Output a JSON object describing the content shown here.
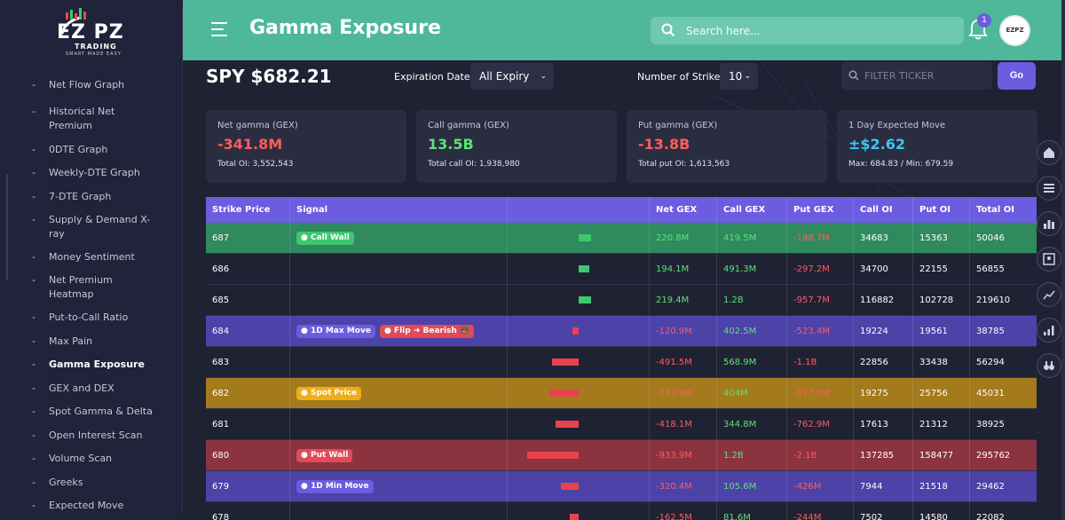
{
  "brand": {
    "logo_text": "EZ PZ",
    "sub1": "TRADING",
    "sub2": "SMART MADE EASY"
  },
  "sidebar": {
    "items": [
      {
        "label": "Net Flow Graph",
        "active": false
      },
      {
        "label": "Historical Net Premium",
        "active": false
      },
      {
        "label": "0DTE Graph",
        "active": false
      },
      {
        "label": "Weekly-DTE Graph",
        "active": false
      },
      {
        "label": "7-DTE Graph",
        "active": false
      },
      {
        "label": "Supply & Demand X-ray",
        "active": false
      },
      {
        "label": "Money Sentiment",
        "active": false
      },
      {
        "label": "Net Premium Heatmap",
        "active": false
      },
      {
        "label": "Put-to-Call Ratio",
        "active": false
      },
      {
        "label": "Max Pain",
        "active": false
      },
      {
        "label": "Gamma Exposure",
        "active": true
      },
      {
        "label": "GEX and DEX",
        "active": false
      },
      {
        "label": "Spot Gamma & Delta",
        "active": false
      },
      {
        "label": "Open Interest Scan",
        "active": false
      },
      {
        "label": "Volume Scan",
        "active": false
      },
      {
        "label": "Greeks",
        "active": false
      },
      {
        "label": "Expected Move",
        "active": false
      }
    ]
  },
  "header": {
    "title": "Gamma Exposure",
    "search_placeholder": "Search here...",
    "notification_count": "1",
    "avatar_text": "EZPZ"
  },
  "controls": {
    "ticker_price": "SPY $682.21",
    "expiration_label": "Expiration Dates:",
    "expiration_value": "All Expiry",
    "strikes_label": "Number of Strikes:",
    "strikes_value": "10",
    "filter_placeholder": "FILTER TICKER",
    "go_label": "Go"
  },
  "cards": [
    {
      "label": "Net gamma (GEX)",
      "value": "-341.8M",
      "sub": "Total OI: 3,552,543",
      "color": "#ff5d5d"
    },
    {
      "label": "Call gamma (GEX)",
      "value": "13.5B",
      "sub": "Total call OI: 1,938,980",
      "color": "#5fe07a"
    },
    {
      "label": "Put gamma (GEX)",
      "value": "-13.8B",
      "sub": "Total put OI: 1,613,563",
      "color": "#ff5d5d"
    },
    {
      "label": "1 Day Expected Move",
      "value": "±$2.62",
      "sub": "Max: 684.83 / Min: 679.59",
      "color": "#3fc3f0"
    }
  ],
  "table": {
    "headers": [
      "Strike Price",
      "Signal",
      "",
      "Net GEX",
      "Call GEX",
      "Put GEX",
      "Call OI",
      "Put OI",
      "Total OI"
    ],
    "rows": [
      {
        "strike": "687",
        "bg": "#2f8a5e",
        "badges": [
          {
            "text": "● Call Wall",
            "color": "#3ec76f"
          }
        ],
        "net_gex_value": 220.8,
        "net": "220.8M",
        "call": "419.5M",
        "put": "-198.7M",
        "call_oi": "34683",
        "put_oi": "15363",
        "total_oi": "50046"
      },
      {
        "strike": "686",
        "bg": "#1f2233",
        "badges": [],
        "net_gex_value": 194.1,
        "net": "194.1M",
        "call": "491.3M",
        "put": "-297.2M",
        "call_oi": "34700",
        "put_oi": "22155",
        "total_oi": "56855"
      },
      {
        "strike": "685",
        "bg": "#1f2233",
        "badges": [],
        "net_gex_value": 219.4,
        "net": "219.4M",
        "call": "1.2B",
        "put": "-957.7M",
        "call_oi": "116882",
        "put_oi": "102728",
        "total_oi": "219610"
      },
      {
        "strike": "684",
        "bg": "#4c42a8",
        "badges": [
          {
            "text": "● 1D Max Move",
            "color": "#6b5ce0"
          },
          {
            "text": "● Flip ➜ Bearish 🐻",
            "color": "#e04b55"
          }
        ],
        "net_gex_value": -120.9,
        "net": "-120.9M",
        "call": "402.5M",
        "put": "-523.4M",
        "call_oi": "19224",
        "put_oi": "19561",
        "total_oi": "38785"
      },
      {
        "strike": "683",
        "bg": "#1f2233",
        "badges": [],
        "net_gex_value": -491.5,
        "net": "-491.5M",
        "call": "568.9M",
        "put": "-1.1B",
        "call_oi": "22856",
        "put_oi": "33438",
        "total_oi": "56294"
      },
      {
        "strike": "682",
        "bg": "#a37a1c",
        "badges": [
          {
            "text": "● Spot Price",
            "color": "#f0ad1a"
          }
        ],
        "net_gex_value": -533.8,
        "net": "-533.8M",
        "call": "404M",
        "put": "-937.8M",
        "call_oi": "19275",
        "put_oi": "25756",
        "total_oi": "45031"
      },
      {
        "strike": "681",
        "bg": "#1f2233",
        "badges": [],
        "net_gex_value": -418.1,
        "net": "-418.1M",
        "call": "344.8M",
        "put": "-762.9M",
        "call_oi": "17613",
        "put_oi": "21312",
        "total_oi": "38925"
      },
      {
        "strike": "680",
        "bg": "#8c3340",
        "badges": [
          {
            "text": "● Put Wall",
            "color": "#e04b55"
          }
        ],
        "net_gex_value": -933.9,
        "net": "-933.9M",
        "call": "1.2B",
        "put": "-2.1B",
        "call_oi": "137285",
        "put_oi": "158477",
        "total_oi": "295762"
      },
      {
        "strike": "679",
        "bg": "#4c42a8",
        "badges": [
          {
            "text": "● 1D Min Move",
            "color": "#6b5ce0"
          }
        ],
        "net_gex_value": -320.4,
        "net": "-320.4M",
        "call": "105.6M",
        "put": "-426M",
        "call_oi": "7944",
        "put_oi": "21518",
        "total_oi": "29462"
      },
      {
        "strike": "678",
        "bg": "#1f2233",
        "badges": [],
        "net_gex_value": -162.5,
        "net": "-162.5M",
        "call": "81.6M",
        "put": "-244M",
        "call_oi": "7502",
        "put_oi": "14580",
        "total_oi": "22082"
      }
    ]
  },
  "rail_icons": [
    "home-icon",
    "list-icon",
    "bar-chart-icon",
    "person-chart-icon",
    "line-chart-icon",
    "signal-bars-icon",
    "binoculars-icon"
  ]
}
